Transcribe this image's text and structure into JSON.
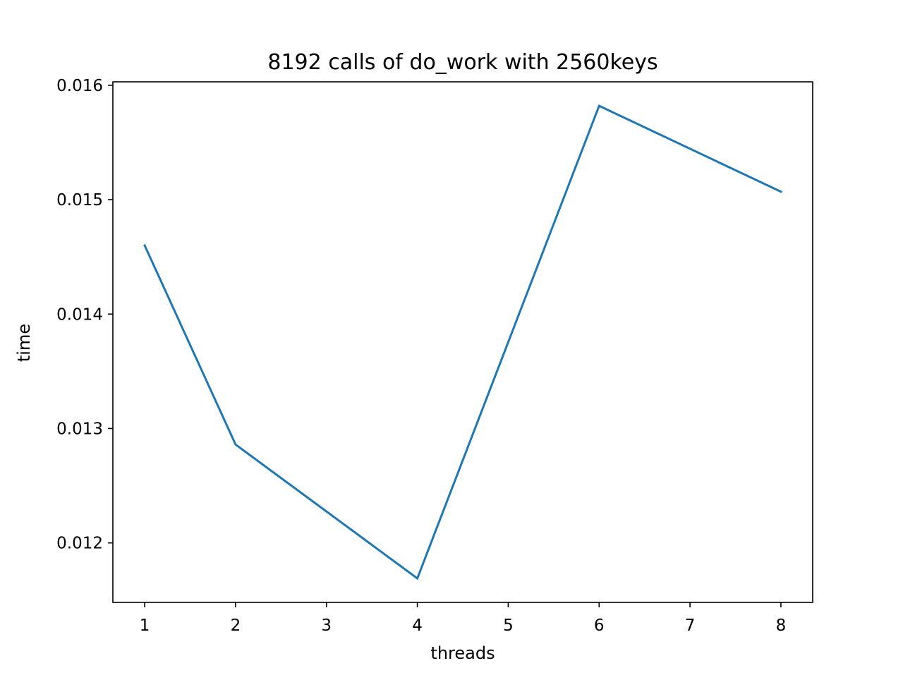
{
  "chart_data": {
    "type": "line",
    "title": "8192 calls of do_work with 2560keys",
    "xlabel": "threads",
    "ylabel": "time",
    "xlim": [
      0.65,
      8.35
    ],
    "ylim": [
      0.01148,
      0.01603
    ],
    "xticks": [
      1,
      2,
      3,
      4,
      5,
      6,
      7,
      8
    ],
    "yticks": [
      0.012,
      0.013,
      0.014,
      0.015,
      0.016
    ],
    "ytick_labels": [
      "0.012",
      "0.013",
      "0.014",
      "0.015",
      "0.016"
    ],
    "grid": false,
    "series": [
      {
        "color": "#1f77b4",
        "points": [
          {
            "x": 1,
            "y": 0.0146
          },
          {
            "x": 2,
            "y": 0.01286
          },
          {
            "x": 4,
            "y": 0.01169
          },
          {
            "x": 6,
            "y": 0.01582
          },
          {
            "x": 8,
            "y": 0.01507
          }
        ]
      }
    ]
  }
}
